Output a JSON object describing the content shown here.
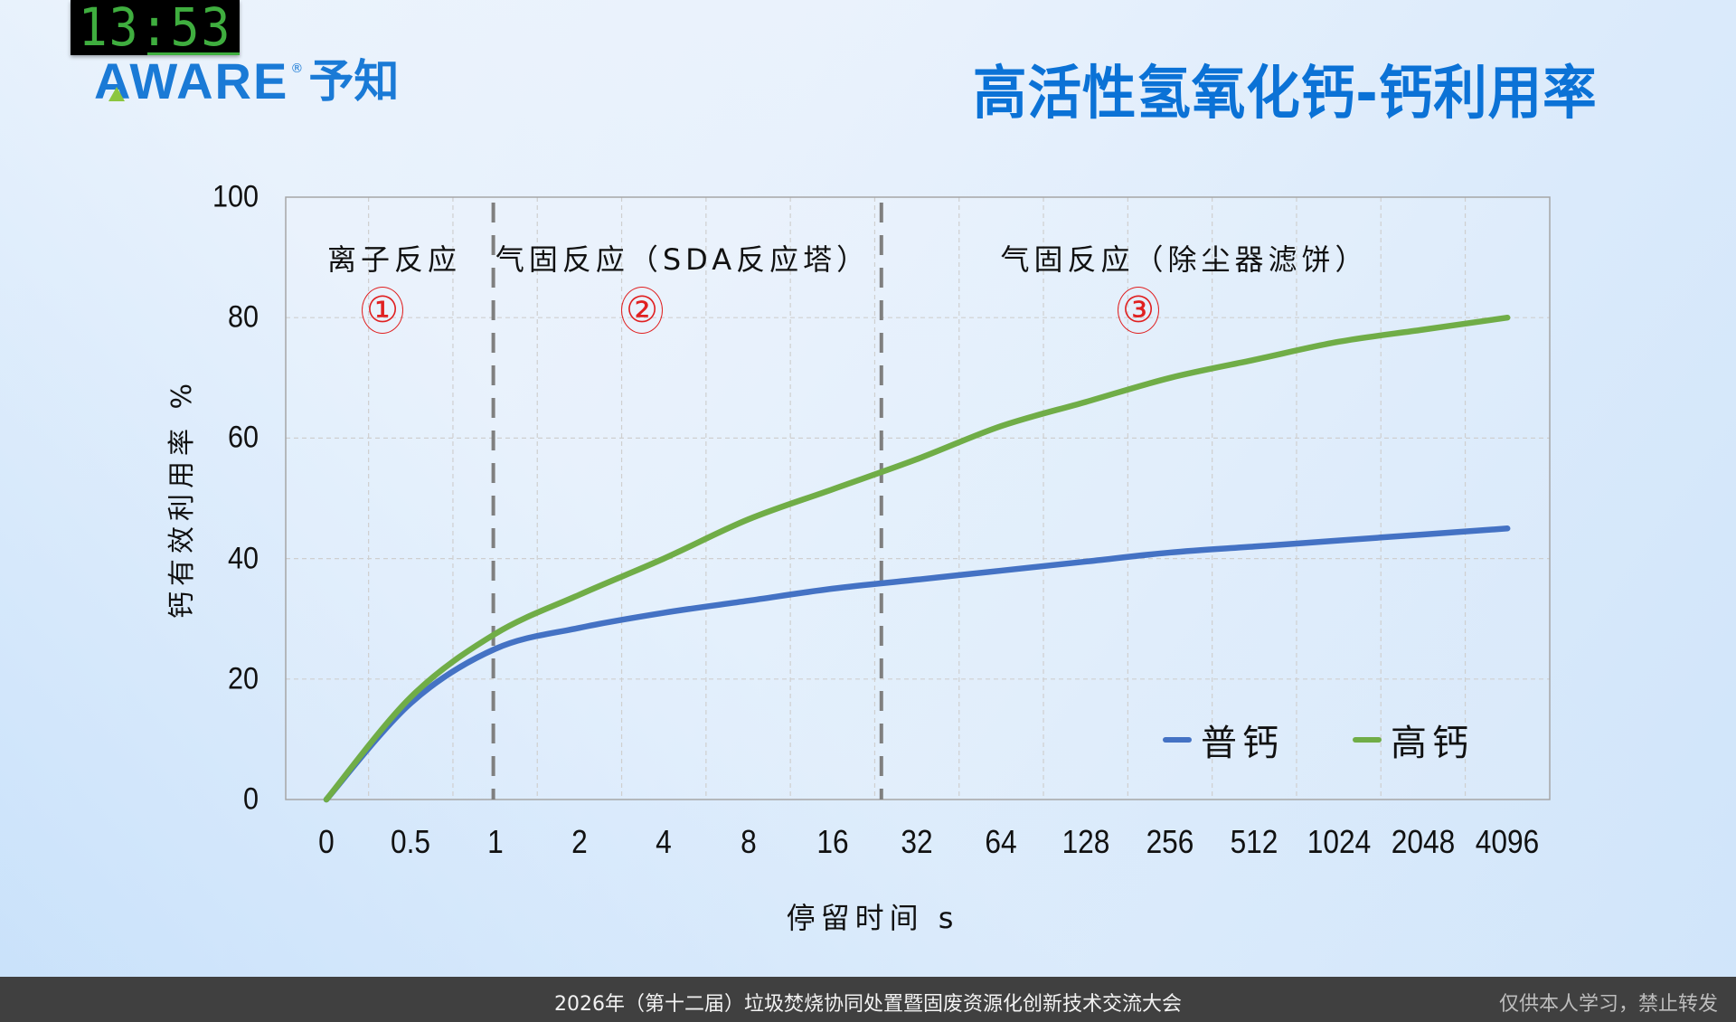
{
  "clock": {
    "time": "13:53"
  },
  "logo": {
    "brand": "AWARE",
    "registered": "®",
    "chinese": "予知"
  },
  "header": {
    "title": "高活性氢氧化钙-钙利用率"
  },
  "chart_data": {
    "type": "line",
    "title": "高活性氢氧化钙-钙利用率",
    "xlabel": "停留时间 s",
    "ylabel": "钙有效利用率 %",
    "categories": [
      "0",
      "0.5",
      "1",
      "2",
      "4",
      "8",
      "16",
      "32",
      "64",
      "128",
      "256",
      "512",
      "1024",
      "2048",
      "4096"
    ],
    "ylim": [
      0,
      100
    ],
    "yticks": [
      "0",
      "20",
      "40",
      "60",
      "80",
      "100"
    ],
    "grid": true,
    "legend_position": "lower right",
    "series": [
      {
        "name": "普钙",
        "color": "#4472c4",
        "values": [
          0,
          16,
          25,
          28.5,
          31,
          33,
          35,
          36.5,
          38,
          39.5,
          41,
          42,
          43,
          44,
          45
        ]
      },
      {
        "name": "高钙",
        "color": "#70ad47",
        "values": [
          0,
          17,
          27.5,
          34,
          40,
          46.5,
          51.5,
          56.5,
          62,
          66,
          70,
          73,
          76,
          78,
          80
        ]
      }
    ],
    "regions": [
      {
        "label": "离子反应",
        "marker": "①"
      },
      {
        "label": "气固反应（SDA反应塔）",
        "marker": "②"
      },
      {
        "label": "气固反应（除尘器滤饼）",
        "marker": "③"
      }
    ],
    "divider_lines_at_category_index": [
      2,
      6.6
    ]
  },
  "footer": {
    "conference": "2026年（第十二届）垃圾焚烧协同处置暨固废资源化创新技术交流大会",
    "notice": "仅供本人学习，禁止转发"
  }
}
